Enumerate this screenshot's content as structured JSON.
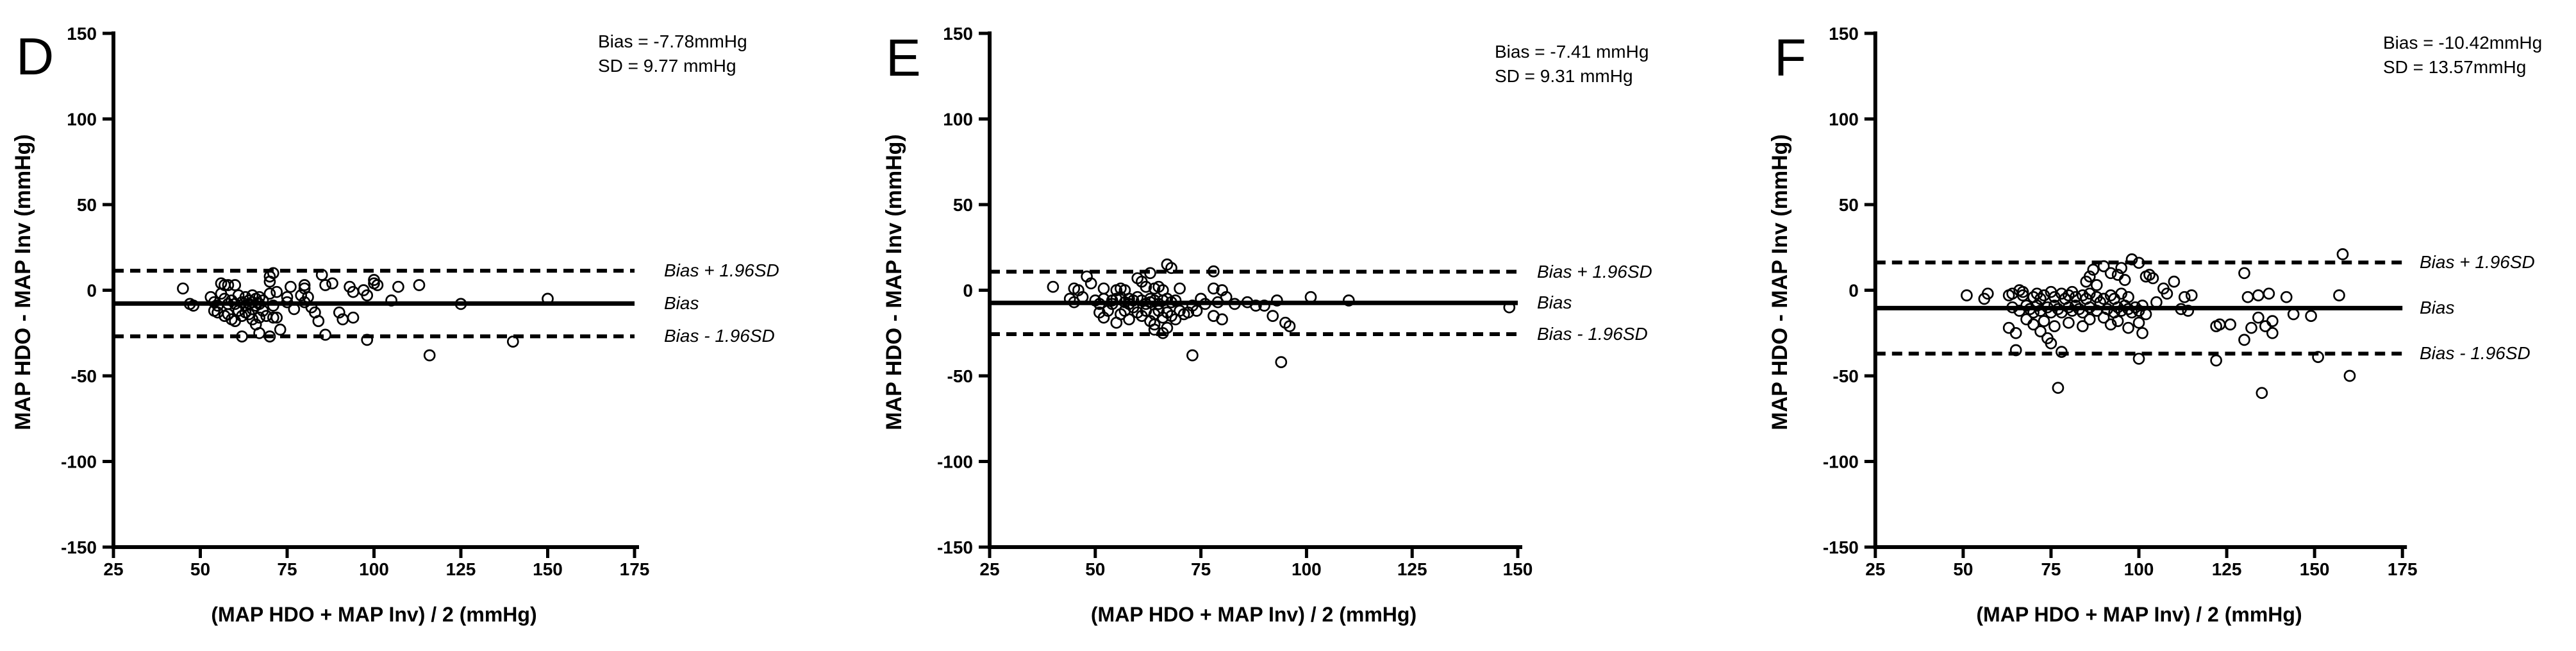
{
  "colors": {
    "ink": "#000000",
    "background": "#ffffff"
  },
  "chart_data": [
    {
      "type": "scatter",
      "panel_label": "D",
      "annotation": {
        "bias_text": "Bias = -7.78mmHg",
        "sd_text": "SD = 9.77 mmHg"
      },
      "bias": -7.78,
      "sd": 9.77,
      "xlabel": "(MAP HDO + MAP Inv) / 2 (mmHg)",
      "ylabel": "MAP HDO - MAP Inv (mmHg)",
      "xlim": [
        25,
        175
      ],
      "ylim": [
        -150,
        150
      ],
      "xticks": [
        25,
        50,
        75,
        100,
        125,
        150,
        175
      ],
      "yticks": [
        150,
        100,
        50,
        0,
        -50,
        -100,
        -150
      ],
      "grid": false,
      "reference_lines": {
        "upper_label": "Bias + 1.96SD",
        "mid_label": "Bias",
        "lower_label": "Bias - 1.96SD"
      },
      "points": [
        [
          45,
          1
        ],
        [
          47,
          -8
        ],
        [
          48,
          -9
        ],
        [
          53,
          -4
        ],
        [
          54,
          -7
        ],
        [
          54,
          -12
        ],
        [
          55,
          -9
        ],
        [
          55,
          -13
        ],
        [
          56,
          4
        ],
        [
          56,
          -2
        ],
        [
          57,
          3
        ],
        [
          57,
          -5
        ],
        [
          57,
          -15
        ],
        [
          58,
          3
        ],
        [
          58,
          -8
        ],
        [
          58,
          -14
        ],
        [
          59,
          -6
        ],
        [
          59,
          -17
        ],
        [
          60,
          3
        ],
        [
          60,
          -8
        ],
        [
          60,
          -18
        ],
        [
          61,
          -3
        ],
        [
          61,
          -12
        ],
        [
          62,
          -7
        ],
        [
          62,
          -15
        ],
        [
          62,
          -27
        ],
        [
          63,
          -4
        ],
        [
          63,
          -9
        ],
        [
          63,
          -13
        ],
        [
          64,
          -6
        ],
        [
          64,
          -8
        ],
        [
          64,
          -14
        ],
        [
          65,
          -3
        ],
        [
          65,
          -7
        ],
        [
          65,
          -11
        ],
        [
          65,
          -17
        ],
        [
          66,
          -5
        ],
        [
          66,
          -9
        ],
        [
          66,
          -20
        ],
        [
          67,
          -4
        ],
        [
          67,
          -8
        ],
        [
          67,
          -16
        ],
        [
          67,
          -25
        ],
        [
          68,
          -6
        ],
        [
          68,
          -12
        ],
        [
          69,
          -15
        ],
        [
          70,
          8
        ],
        [
          70,
          5
        ],
        [
          70,
          -2
        ],
        [
          70,
          -27
        ],
        [
          71,
          10
        ],
        [
          71,
          -9
        ],
        [
          71,
          -16
        ],
        [
          72,
          -1
        ],
        [
          72,
          -16
        ],
        [
          73,
          -23
        ],
        [
          75,
          -4
        ],
        [
          75,
          -7
        ],
        [
          76,
          2
        ],
        [
          77,
          -11
        ],
        [
          79,
          -3
        ],
        [
          80,
          3
        ],
        [
          80,
          1
        ],
        [
          80,
          -7
        ],
        [
          81,
          -4
        ],
        [
          82,
          -10
        ],
        [
          83,
          -13
        ],
        [
          84,
          -18
        ],
        [
          85,
          9
        ],
        [
          86,
          3
        ],
        [
          86,
          -26
        ],
        [
          88,
          4
        ],
        [
          90,
          -13
        ],
        [
          91,
          -17
        ],
        [
          93,
          2
        ],
        [
          94,
          -1
        ],
        [
          94,
          -16
        ],
        [
          97,
          0
        ],
        [
          98,
          -3
        ],
        [
          98,
          -29
        ],
        [
          100,
          6
        ],
        [
          100,
          4
        ],
        [
          101,
          3
        ],
        [
          105,
          -6
        ],
        [
          107,
          2
        ],
        [
          113,
          3
        ],
        [
          116,
          -38
        ],
        [
          125,
          -8
        ],
        [
          140,
          -30
        ],
        [
          150,
          -5
        ]
      ]
    },
    {
      "type": "scatter",
      "panel_label": "E",
      "annotation": {
        "bias_text": "Bias = -7.41 mmHg",
        "sd_text": "SD = 9.31 mmHg"
      },
      "bias": -7.41,
      "sd": 9.31,
      "xlabel": "(MAP HDO + MAP Inv) / 2 (mmHg)",
      "ylabel": "MAP HDO - MAP Inv (mmHg)",
      "xlim": [
        25,
        150
      ],
      "ylim": [
        -150,
        150
      ],
      "xticks": [
        25,
        50,
        75,
        100,
        125,
        150
      ],
      "yticks": [
        150,
        100,
        50,
        0,
        -50,
        -100,
        -150
      ],
      "grid": false,
      "reference_lines": {
        "upper_label": "Bias + 1.96SD",
        "mid_label": "Bias",
        "lower_label": "Bias - 1.96SD"
      },
      "points": [
        [
          40,
          2
        ],
        [
          44,
          -5
        ],
        [
          45,
          1
        ],
        [
          45,
          -7
        ],
        [
          46,
          0
        ],
        [
          47,
          -4
        ],
        [
          48,
          8
        ],
        [
          49,
          4
        ],
        [
          50,
          -6
        ],
        [
          51,
          -8
        ],
        [
          51,
          -13
        ],
        [
          52,
          1
        ],
        [
          52,
          -5
        ],
        [
          52,
          -16
        ],
        [
          53,
          -12
        ],
        [
          54,
          -6
        ],
        [
          54,
          -8
        ],
        [
          55,
          0
        ],
        [
          55,
          -5
        ],
        [
          55,
          -19
        ],
        [
          56,
          1
        ],
        [
          56,
          -4
        ],
        [
          56,
          -14
        ],
        [
          57,
          0
        ],
        [
          57,
          -7
        ],
        [
          57,
          -12
        ],
        [
          58,
          -5
        ],
        [
          58,
          -8
        ],
        [
          58,
          -17
        ],
        [
          59,
          -6
        ],
        [
          59,
          -10
        ],
        [
          60,
          7
        ],
        [
          60,
          -4
        ],
        [
          60,
          -13
        ],
        [
          61,
          5
        ],
        [
          61,
          -6
        ],
        [
          61,
          -15
        ],
        [
          62,
          2
        ],
        [
          62,
          -8
        ],
        [
          62,
          -12
        ],
        [
          63,
          10
        ],
        [
          63,
          -5
        ],
        [
          63,
          -7
        ],
        [
          63,
          -18
        ],
        [
          64,
          1
        ],
        [
          64,
          -6
        ],
        [
          64,
          -14
        ],
        [
          64,
          -20
        ],
        [
          64,
          -23
        ],
        [
          65,
          2
        ],
        [
          65,
          -8
        ],
        [
          65,
          -12
        ],
        [
          66,
          0
        ],
        [
          66,
          -6
        ],
        [
          66,
          -16
        ],
        [
          66,
          -25
        ],
        [
          67,
          15
        ],
        [
          67,
          -5
        ],
        [
          67,
          -13
        ],
        [
          67,
          -22
        ],
        [
          68,
          13
        ],
        [
          68,
          -7
        ],
        [
          68,
          -15
        ],
        [
          69,
          -6
        ],
        [
          69,
          -17
        ],
        [
          70,
          1
        ],
        [
          70,
          -12
        ],
        [
          71,
          -14
        ],
        [
          72,
          -13
        ],
        [
          73,
          -9
        ],
        [
          73,
          -38
        ],
        [
          74,
          -12
        ],
        [
          75,
          -5
        ],
        [
          76,
          -8
        ],
        [
          78,
          11
        ],
        [
          78,
          1
        ],
        [
          78,
          -15
        ],
        [
          79,
          -7
        ],
        [
          80,
          0
        ],
        [
          80,
          -17
        ],
        [
          81,
          -4
        ],
        [
          83,
          -8
        ],
        [
          86,
          -7
        ],
        [
          88,
          -9
        ],
        [
          90,
          -9
        ],
        [
          92,
          -15
        ],
        [
          93,
          -6
        ],
        [
          94,
          -42
        ],
        [
          95,
          -19
        ],
        [
          96,
          -21
        ],
        [
          101,
          -4
        ],
        [
          110,
          -6
        ],
        [
          148,
          -10
        ]
      ]
    },
    {
      "type": "scatter",
      "panel_label": "F",
      "annotation": {
        "bias_text": "Bias = -10.42mmHg",
        "sd_text": "SD = 13.57mmHg"
      },
      "bias": -10.42,
      "sd": 13.57,
      "xlabel": "(MAP HDO + MAP Inv) / 2 (mmHg)",
      "ylabel": "MAP HDO - MAP Inv (mmHg)",
      "xlim": [
        25,
        175
      ],
      "ylim": [
        -150,
        150
      ],
      "xticks": [
        25,
        50,
        75,
        100,
        125,
        150,
        175
      ],
      "yticks": [
        150,
        100,
        50,
        0,
        -50,
        -100,
        -150
      ],
      "grid": false,
      "reference_lines": {
        "upper_label": "Bias + 1.96SD",
        "mid_label": "Bias",
        "lower_label": "Bias - 1.96SD"
      },
      "points": [
        [
          51,
          -3
        ],
        [
          56,
          -5
        ],
        [
          57,
          -2
        ],
        [
          63,
          -3
        ],
        [
          63,
          -22
        ],
        [
          64,
          -2
        ],
        [
          64,
          -10
        ],
        [
          65,
          -25
        ],
        [
          65,
          -35
        ],
        [
          66,
          0
        ],
        [
          66,
          -12
        ],
        [
          67,
          -1
        ],
        [
          67,
          -3
        ],
        [
          68,
          -9
        ],
        [
          68,
          -17
        ],
        [
          69,
          -11
        ],
        [
          70,
          -4
        ],
        [
          70,
          -13
        ],
        [
          70,
          -20
        ],
        [
          71,
          -2
        ],
        [
          71,
          -9
        ],
        [
          72,
          -5
        ],
        [
          72,
          -12
        ],
        [
          72,
          -24
        ],
        [
          73,
          -3
        ],
        [
          73,
          -18
        ],
        [
          74,
          -10
        ],
        [
          74,
          -28
        ],
        [
          75,
          -1
        ],
        [
          75,
          -13
        ],
        [
          75,
          -31
        ],
        [
          76,
          -4
        ],
        [
          76,
          -9
        ],
        [
          76,
          -21
        ],
        [
          77,
          -11
        ],
        [
          77,
          -57
        ],
        [
          78,
          -2
        ],
        [
          78,
          -13
        ],
        [
          78,
          -36
        ],
        [
          79,
          -5
        ],
        [
          80,
          -3
        ],
        [
          80,
          -10
        ],
        [
          80,
          -19
        ],
        [
          81,
          -1
        ],
        [
          81,
          -12
        ],
        [
          82,
          -4
        ],
        [
          82,
          -9
        ],
        [
          83,
          -11
        ],
        [
          84,
          -3
        ],
        [
          84,
          -13
        ],
        [
          84,
          -21
        ],
        [
          85,
          5
        ],
        [
          85,
          -5
        ],
        [
          86,
          8
        ],
        [
          86,
          -2
        ],
        [
          86,
          -10
        ],
        [
          86,
          -17
        ],
        [
          87,
          12
        ],
        [
          88,
          3
        ],
        [
          88,
          -4
        ],
        [
          88,
          -12
        ],
        [
          89,
          -7
        ],
        [
          90,
          14
        ],
        [
          90,
          -5
        ],
        [
          90,
          -16
        ],
        [
          91,
          -11
        ],
        [
          92,
          10
        ],
        [
          92,
          -3
        ],
        [
          92,
          -20
        ],
        [
          93,
          -5
        ],
        [
          93,
          -13
        ],
        [
          94,
          9
        ],
        [
          94,
          -10
        ],
        [
          94,
          -18
        ],
        [
          95,
          13
        ],
        [
          95,
          -2
        ],
        [
          95,
          -12
        ],
        [
          96,
          6
        ],
        [
          96,
          -9
        ],
        [
          97,
          -4
        ],
        [
          97,
          -11
        ],
        [
          97,
          -22
        ],
        [
          98,
          18
        ],
        [
          98,
          -13
        ],
        [
          99,
          -10
        ],
        [
          100,
          16
        ],
        [
          100,
          -12
        ],
        [
          100,
          -19
        ],
        [
          100,
          -40
        ],
        [
          101,
          -9
        ],
        [
          101,
          -25
        ],
        [
          102,
          8
        ],
        [
          102,
          -14
        ],
        [
          103,
          9
        ],
        [
          104,
          7
        ],
        [
          105,
          -7
        ],
        [
          107,
          1
        ],
        [
          108,
          -2
        ],
        [
          110,
          5
        ],
        [
          112,
          -11
        ],
        [
          113,
          -4
        ],
        [
          114,
          -12
        ],
        [
          115,
          -3
        ],
        [
          122,
          -21
        ],
        [
          122,
          -41
        ],
        [
          123,
          -20
        ],
        [
          126,
          -20
        ],
        [
          130,
          10
        ],
        [
          130,
          -29
        ],
        [
          131,
          -4
        ],
        [
          132,
          -22
        ],
        [
          134,
          -3
        ],
        [
          134,
          -16
        ],
        [
          135,
          -60
        ],
        [
          136,
          -21
        ],
        [
          137,
          -2
        ],
        [
          138,
          -18
        ],
        [
          138,
          -25
        ],
        [
          142,
          -4
        ],
        [
          144,
          -14
        ],
        [
          149,
          -15
        ],
        [
          151,
          -39
        ],
        [
          157,
          -3
        ],
        [
          158,
          21
        ],
        [
          160,
          -50
        ]
      ]
    }
  ]
}
